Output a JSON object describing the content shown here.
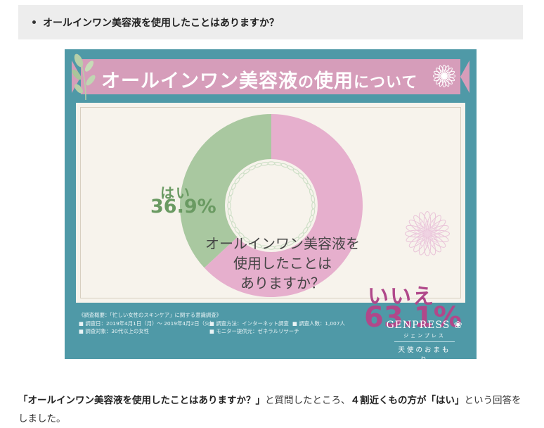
{
  "question_box": {
    "text": "オールインワン美容液を使用したことはありますか？"
  },
  "infographic": {
    "title_main": "オールインワン美容液",
    "title_mid": "の",
    "title_word": "使用",
    "title_tail": "について",
    "center_question_lines": [
      "オールインワン美容液を",
      "使用したことは",
      "ありますか？"
    ],
    "survey": {
      "line1": "《調査概要：「忙しい女性のスキンケア」に関する意識調査》",
      "period": "■ 調査日：2019年4月1日（月）～ 2019年4月2日（火）",
      "method": "■ 調査方法：インターネット調査",
      "count": "■ 調査人数：1,007人",
      "target": "■ 調査対象：30代以上の女性",
      "provider": "■ モニター提供元：ゼネラルリサーチ"
    },
    "brand": {
      "name": "GENPRESS",
      "kana": "ジェンプレス",
      "tagline": "天使のおまもり"
    }
  },
  "chart_data": {
    "type": "pie",
    "title": "オールインワン美容液の使用について",
    "categories": [
      "はい",
      "いいえ"
    ],
    "values": [
      36.9,
      63.1
    ],
    "value_labels": [
      "36.9%",
      "63.1%"
    ],
    "donut": true,
    "colors": [
      "#a9c8a0",
      "#e6afcd"
    ]
  },
  "body": {
    "quote": "「オールインワン美容液を使用したことはありますか？」",
    "mid": "と質問したところ、",
    "emph1": "４割近くもの方が「はい」",
    "tail": "という回答をしました。"
  }
}
